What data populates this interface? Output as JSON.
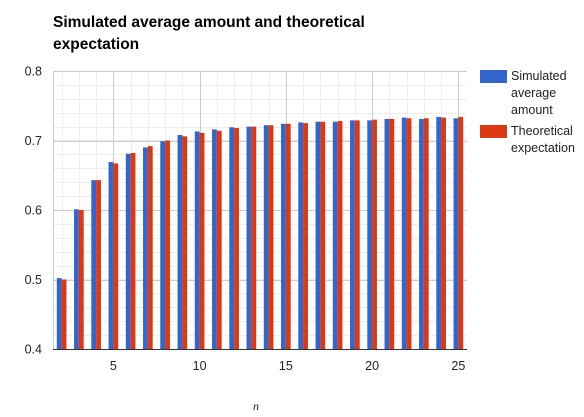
{
  "chart_data": {
    "type": "bar",
    "title": "Simulated average amount and theoretical expectation",
    "xlabel": "n",
    "ylabel": "",
    "x": [
      2,
      3,
      4,
      5,
      6,
      7,
      8,
      9,
      10,
      11,
      12,
      13,
      14,
      15,
      16,
      17,
      18,
      19,
      20,
      21,
      22,
      23,
      24,
      25
    ],
    "xlim": [
      1.5,
      25.5
    ],
    "xticks": [
      5,
      10,
      15,
      20,
      25
    ],
    "ylim": [
      0.4,
      0.8
    ],
    "yticks": [
      "0.4",
      "0.5",
      "0.6",
      "0.7",
      "0.8"
    ],
    "grid": true,
    "legend_position": "right",
    "series": [
      {
        "name": "Simulated average amount",
        "color": "#3366cc",
        "values": [
          0.502,
          0.601,
          0.643,
          0.669,
          0.681,
          0.69,
          0.699,
          0.708,
          0.713,
          0.716,
          0.719,
          0.72,
          0.722,
          0.724,
          0.726,
          0.727,
          0.727,
          0.729,
          0.729,
          0.731,
          0.733,
          0.731,
          0.734,
          0.732
        ]
      },
      {
        "name": "Theoretical expectation",
        "color": "#dc3912",
        "values": [
          0.5,
          0.6,
          0.643,
          0.667,
          0.682,
          0.692,
          0.7,
          0.706,
          0.711,
          0.714,
          0.718,
          0.72,
          0.722,
          0.724,
          0.725,
          0.727,
          0.728,
          0.729,
          0.73,
          0.731,
          0.732,
          0.732,
          0.733,
          0.734
        ]
      }
    ]
  }
}
